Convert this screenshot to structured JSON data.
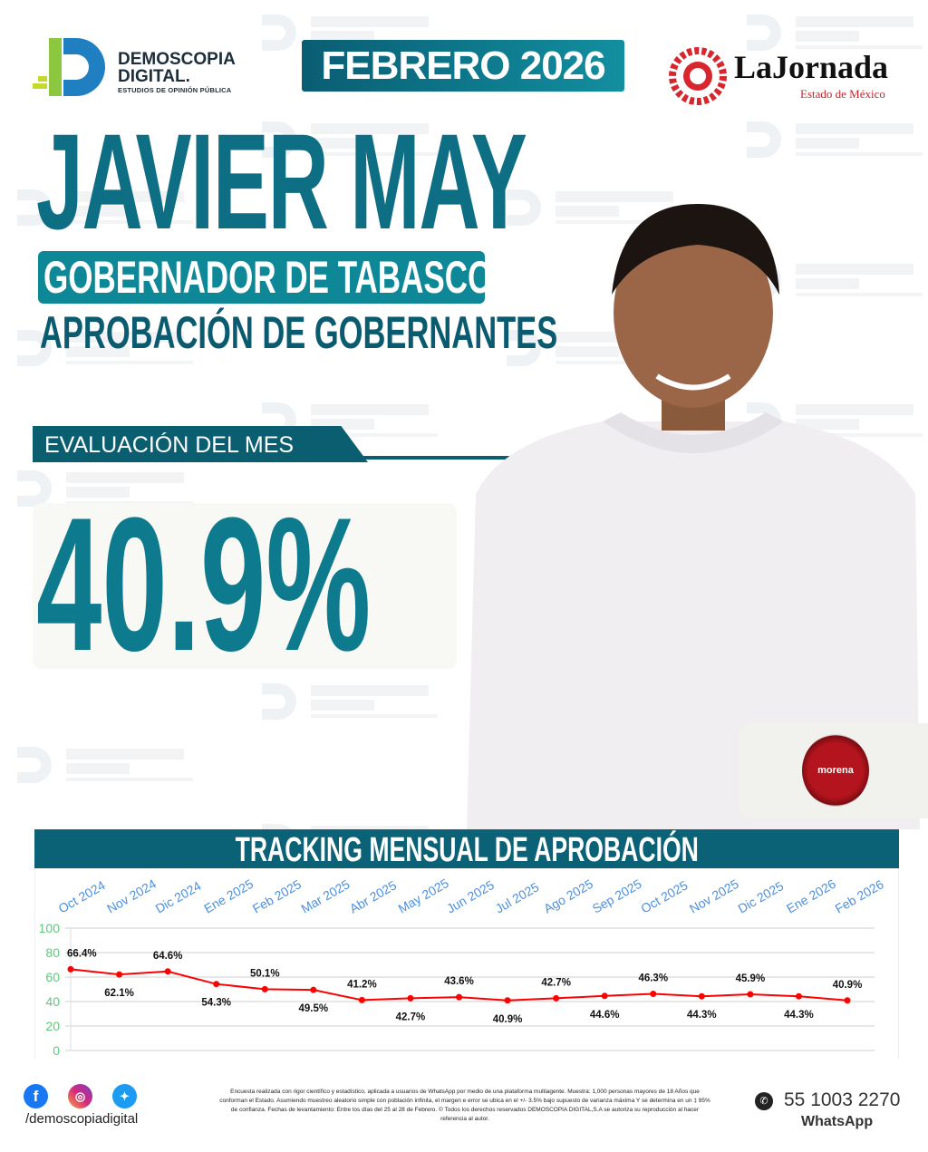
{
  "header": {
    "brand_name": "DEMOSCOPIA DIGITAL",
    "brand_line1": "DEMOSCOPIA",
    "brand_line2": "DIGITAL.",
    "brand_tagline": "ESTUDIOS DE OPINIÓN PÚBLICA",
    "date": "FEBRERO 2026",
    "partner_name": "LaJornada",
    "partner_region": "Estado de México"
  },
  "watermark": {
    "line1": "DEMOSCOPIA",
    "line2": "DIGITAL",
    "line3": "ESTUDIOS DE OPINIÓN PÚBLICA"
  },
  "hero": {
    "name": "JAVIER MAY",
    "role": "GOBERNADOR DE TABASCO",
    "subtitle": "APROBACIÓN DE GOBERNANTES",
    "eval_label": "EVALUACIÓN DEL MES",
    "value": "40.9%",
    "party": "morena"
  },
  "colors": {
    "primary": "#0b6276",
    "accent": "#0e8796",
    "line": "#ff0000",
    "x_labels": "#4a90e2",
    "y_labels": "#5cc97a"
  },
  "chart_data": {
    "type": "line",
    "title": "TRACKING MENSUAL DE APROBACIÓN",
    "categories": [
      "Oct 2024",
      "Nov 2024",
      "Dic 2024",
      "Ene 2025",
      "Feb 2025",
      "Mar 2025",
      "Abr 2025",
      "May 2025",
      "Jun 2025",
      "Jul 2025",
      "Ago 2025",
      "Sep 2025",
      "Oct 2025",
      "Nov 2025",
      "Dic 2025",
      "Ene 2026",
      "Feb 2026"
    ],
    "values": [
      66.4,
      62.1,
      64.6,
      54.3,
      50.1,
      49.5,
      41.2,
      42.7,
      43.6,
      40.9,
      42.7,
      44.6,
      46.3,
      44.3,
      45.9,
      44.3,
      40.9
    ],
    "data_labels": [
      "66.4%",
      "62.1%",
      "64.6%",
      "54.3%",
      "50.1%",
      "49.5%",
      "41.2%",
      "42.7%",
      "43.6%",
      "40.9%",
      "42.7%",
      "44.6%",
      "46.3%",
      "44.3%",
      "45.9%",
      "44.3%",
      "40.9%"
    ],
    "yticks": [
      "0",
      "20",
      "40",
      "60",
      "80",
      "100"
    ],
    "ylim": [
      0,
      100
    ],
    "grid": true,
    "xaxis_position": "top"
  },
  "footer": {
    "social": [
      "facebook-icon",
      "instagram-icon",
      "twitter-icon"
    ],
    "handle": "/demoscopiadigital",
    "disclaimer": "Encuesta realizada con rigor científico y estadístico, aplicada a usuarios de WhatsApp por medio de una plataforma multiagente. Muestra: 1,000 personas mayores de 18 Años que conforman el Estado. Asumiendo muestreo aleatorio simple con población infinita, el margen e error se ubica en el +/- 3.5% bajo supuesto de varianza máxima Y se determina en un ‡ 95% de confianza. Fechas de levantamiento: Entre los días del 25 al 28 de Febrero. © Todos los derechos reservados DEMOSCOPIA DIGITAL,S.A se autoriza su reproducción al hacer referencia al autor.",
    "phone": "55 1003 2270",
    "whatsapp": "WhatsApp"
  }
}
